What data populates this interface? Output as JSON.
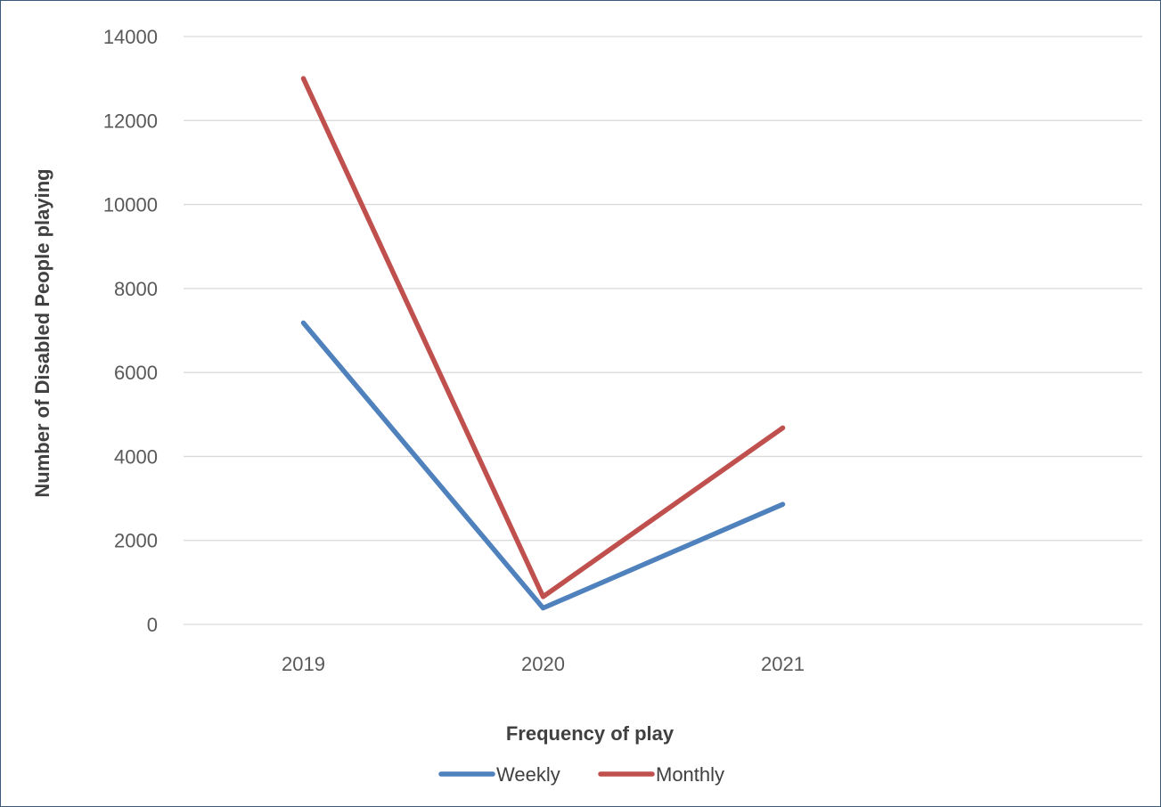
{
  "chart_data": {
    "type": "line",
    "categories": [
      "2019",
      "2020",
      "2021"
    ],
    "slots": 4,
    "series": [
      {
        "name": "Weekly",
        "color": "#4f81bd",
        "values": [
          7180,
          390,
          2860
        ]
      },
      {
        "name": "Monthly",
        "color": "#c0504d",
        "values": [
          13000,
          660,
          4680
        ]
      }
    ],
    "xlabel": "Frequency of play",
    "ylabel": "Number of Disabled People playing",
    "ylim": [
      0,
      14000
    ],
    "yticks": [
      0,
      2000,
      4000,
      6000,
      8000,
      10000,
      12000,
      14000
    ],
    "ytick_labels": [
      "0",
      "2000",
      "4000",
      "6000",
      "8000",
      "10000",
      "12000",
      "14000"
    ],
    "grid": true,
    "gridline_color": "#d9d9d9",
    "legend": "bottom"
  }
}
